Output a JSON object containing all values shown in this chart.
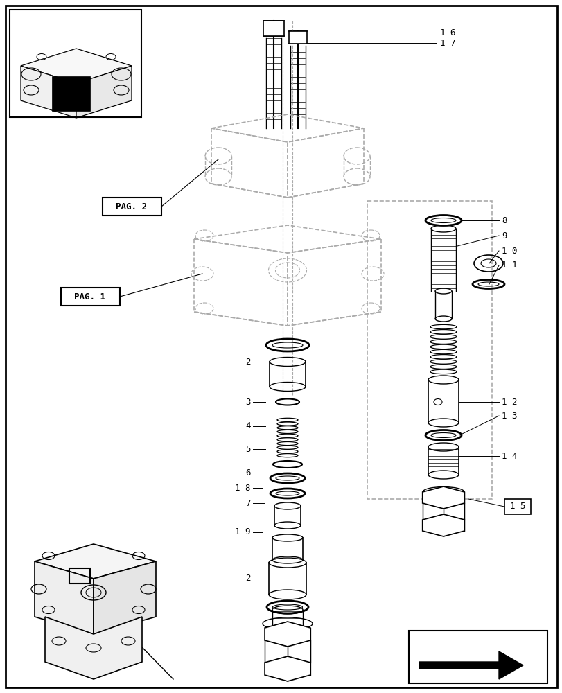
{
  "bg_color": "#ffffff",
  "line_color": "#000000",
  "dashed_color": "#aaaaaa",
  "fig_width": 8.12,
  "fig_height": 10.0
}
